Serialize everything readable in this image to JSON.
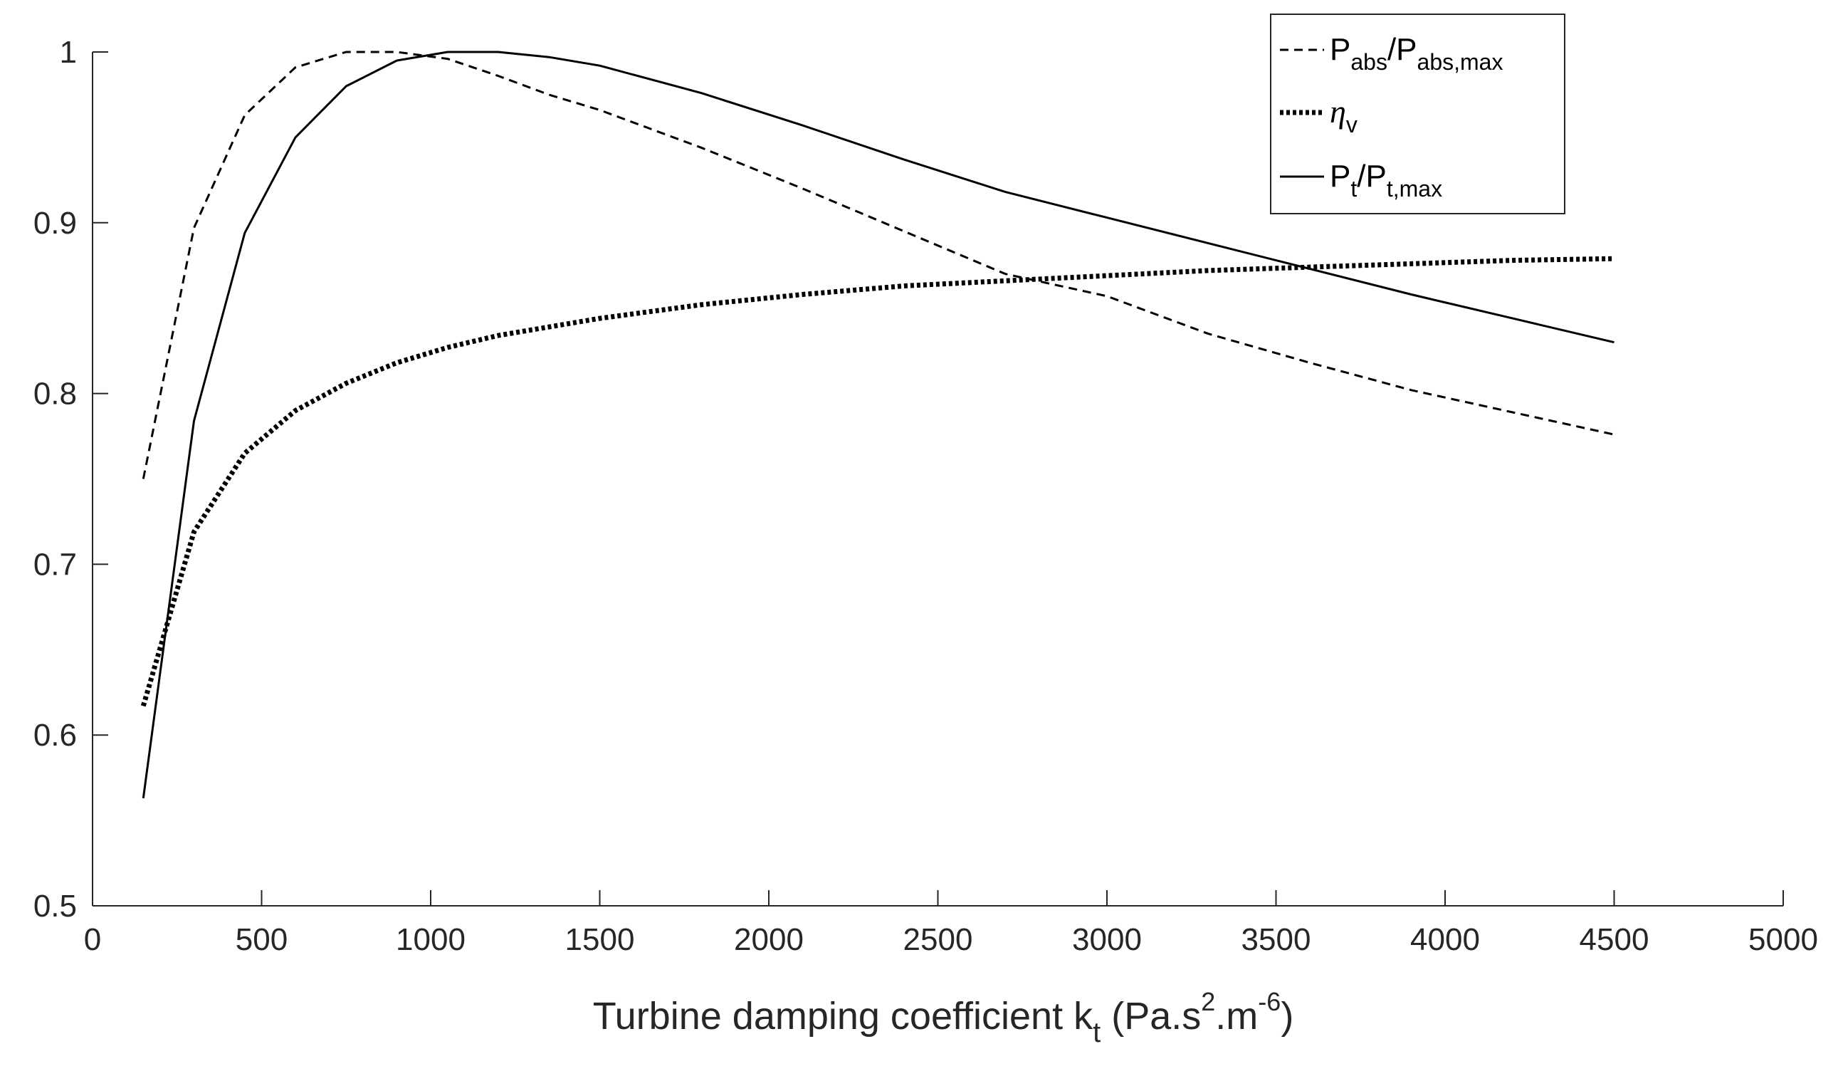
{
  "chart_data": {
    "type": "line",
    "title": "",
    "xlabel": {
      "prefix": "Turbine damping coefficient k",
      "sub": "t",
      "unit_a": " (Pa.s",
      "sup_a": "2",
      "unit_b": ".m",
      "sup_b": "-6",
      "unit_c": ")"
    },
    "ylabel": "",
    "xlim": [
      0,
      5000
    ],
    "ylim": [
      0.5,
      1.0
    ],
    "xticks": [
      0,
      500,
      1000,
      1500,
      2000,
      2500,
      3000,
      3500,
      4000,
      4500,
      5000
    ],
    "xtick_labels": [
      "0",
      "500",
      "1000",
      "1500",
      "2000",
      "2500",
      "3000",
      "3500",
      "4000",
      "4500",
      "5000"
    ],
    "yticks": [
      0.5,
      0.6,
      0.7,
      0.8,
      0.9,
      1.0
    ],
    "ytick_labels": [
      "0.5",
      "0.6",
      "0.7",
      "0.8",
      "0.9",
      "1"
    ],
    "grid": false,
    "legend_position": "top-right",
    "series": [
      {
        "key": "pabs",
        "name": "P_abs/P_abs,max",
        "legend": {
          "a": "P",
          "a_sub": "abs",
          "b": "/P",
          "b_sub": "abs,max"
        },
        "style": "dashed",
        "color": "#000000",
        "x": [
          150,
          300,
          450,
          600,
          750,
          900,
          1050,
          1200,
          1350,
          1500,
          1800,
          2100,
          2400,
          2700,
          3000,
          3300,
          3600,
          3900,
          4200,
          4500
        ],
        "y": [
          0.75,
          0.897,
          0.963,
          0.991,
          1.0,
          1.0,
          0.996,
          0.986,
          0.975,
          0.966,
          0.944,
          0.92,
          0.895,
          0.87,
          0.857,
          0.835,
          0.818,
          0.802,
          0.789,
          0.776
        ]
      },
      {
        "key": "eta",
        "name": "η_v",
        "legend": {
          "a": "η",
          "a_sub": "v"
        },
        "style": "dotted",
        "color": "#000000",
        "x": [
          150,
          300,
          450,
          600,
          750,
          900,
          1050,
          1200,
          1350,
          1500,
          1800,
          2100,
          2400,
          2700,
          3000,
          3300,
          3600,
          3900,
          4200,
          4500
        ],
        "y": [
          0.617,
          0.719,
          0.765,
          0.79,
          0.806,
          0.818,
          0.827,
          0.834,
          0.839,
          0.844,
          0.852,
          0.858,
          0.863,
          0.866,
          0.869,
          0.872,
          0.874,
          0.876,
          0.878,
          0.879
        ]
      },
      {
        "key": "pt",
        "name": "P_t/P_t,max",
        "legend": {
          "a": "P",
          "a_sub": "t",
          "b": "/P",
          "b_sub": "t,max"
        },
        "style": "solid",
        "color": "#000000",
        "x": [
          150,
          300,
          450,
          600,
          750,
          900,
          1050,
          1200,
          1350,
          1500,
          1800,
          2100,
          2400,
          2700,
          3000,
          3300,
          3600,
          3900,
          4200,
          4500
        ],
        "y": [
          0.563,
          0.784,
          0.894,
          0.95,
          0.98,
          0.995,
          1.0,
          1.0,
          0.997,
          0.992,
          0.976,
          0.957,
          0.937,
          0.918,
          0.903,
          0.888,
          0.873,
          0.858,
          0.844,
          0.83
        ]
      }
    ]
  }
}
